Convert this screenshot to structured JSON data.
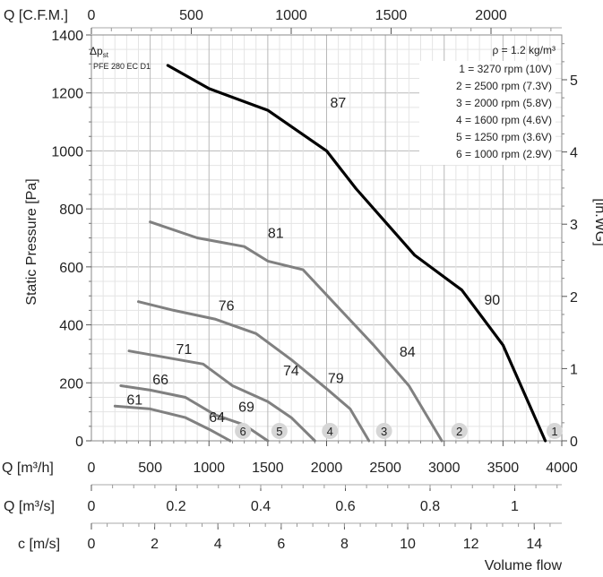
{
  "chart_data": {
    "type": "line",
    "model": "PFE 280 EC D1",
    "dp_label": "Δp",
    "dp_sub": "st",
    "rho_text": "ρ = 1.2 kg/m³",
    "ylabel": "Static Pressure [Pa]",
    "ylabel_right": "[in.WG]",
    "xlabel": "Volume flow",
    "cfm_label": "Q [C.F.M.]",
    "m3h_label": "Q [m³/h]",
    "m3s_label": "Q [m³/s]",
    "ms_label": "c [m/s]",
    "xlim": [
      0,
      4000
    ],
    "ylim": [
      0,
      1400
    ],
    "y_ticks": [
      0,
      200,
      400,
      600,
      800,
      1000,
      1200,
      1400
    ],
    "x_ticks": [
      500,
      1000,
      1500,
      2000,
      2500,
      3000,
      3500,
      4000
    ],
    "x_tick_zero": "0",
    "cfm_ticks": [
      "0",
      "500",
      "1000",
      "1500",
      "2000"
    ],
    "cfm_values": [
      0,
      500,
      1000,
      1500,
      2000
    ],
    "inwg_ticks": [
      "0",
      "1",
      "2",
      "3",
      "4",
      "5"
    ],
    "inwg_values": [
      0,
      1,
      2,
      3,
      4,
      5
    ],
    "m3s_ticks": [
      "0",
      "0.2",
      "0.4",
      "0.6",
      "0.8",
      "1"
    ],
    "m3s_values": [
      0,
      0.2,
      0.4,
      0.6,
      0.8,
      1
    ],
    "ms_ticks": [
      "0",
      "2",
      "4",
      "6",
      "8",
      "10",
      "12",
      "14"
    ],
    "ms_values": [
      0,
      2,
      4,
      6,
      8,
      10,
      12,
      14
    ],
    "legend": [
      "1 = 3270 rpm (10V)",
      "2 = 2500 rpm (7.3V)",
      "3 = 2000 rpm (5.8V)",
      "4 = 1600 rpm (4.6V)",
      "5 = 1250 rpm (3.6V)",
      "6 = 1000 rpm (2.9V)"
    ],
    "series": [
      {
        "label": "1",
        "color": "#000000",
        "x": [
          650,
          1000,
          1500,
          2000,
          2250,
          2750,
          3150,
          3500,
          3860
        ],
        "y": [
          1295,
          1215,
          1140,
          1000,
          870,
          640,
          520,
          330,
          0
        ]
      },
      {
        "label": "2",
        "color": "#808080",
        "x": [
          500,
          900,
          1300,
          1500,
          1800,
          2100,
          2400,
          2700,
          2980
        ],
        "y": [
          755,
          700,
          670,
          620,
          590,
          460,
          330,
          190,
          0
        ]
      },
      {
        "label": "3",
        "color": "#808080",
        "x": [
          400,
          700,
          1050,
          1400,
          1700,
          2000,
          2200,
          2360
        ],
        "y": [
          480,
          450,
          420,
          370,
          280,
          180,
          110,
          0
        ]
      },
      {
        "label": "4",
        "color": "#808080",
        "x": [
          320,
          600,
          950,
          1200,
          1500,
          1700,
          1900
        ],
        "y": [
          310,
          290,
          265,
          190,
          135,
          80,
          0
        ]
      },
      {
        "label": "5",
        "color": "#808080",
        "x": [
          250,
          500,
          800,
          1050,
          1300,
          1500
        ],
        "y": [
          190,
          175,
          150,
          90,
          55,
          0
        ]
      },
      {
        "label": "6",
        "color": "#808080",
        "x": [
          200,
          500,
          800,
          1000,
          1180
        ],
        "y": [
          120,
          110,
          80,
          40,
          0
        ]
      }
    ],
    "efficiency_labels": [
      {
        "text": "87",
        "x": 2030,
        "y": 1150
      },
      {
        "text": "90",
        "x": 3340,
        "y": 470
      },
      {
        "text": "81",
        "x": 1500,
        "y": 700
      },
      {
        "text": "84",
        "x": 2620,
        "y": 290
      },
      {
        "text": "76",
        "x": 1080,
        "y": 450
      },
      {
        "text": "79",
        "x": 2010,
        "y": 200
      },
      {
        "text": "71",
        "x": 720,
        "y": 300
      },
      {
        "text": "74",
        "x": 1630,
        "y": 225
      },
      {
        "text": "66",
        "x": 520,
        "y": 195
      },
      {
        "text": "69",
        "x": 1250,
        "y": 100
      },
      {
        "text": "61",
        "x": 300,
        "y": 125
      },
      {
        "text": "64",
        "x": 1000,
        "y": 65
      }
    ],
    "markers": [
      {
        "text": "1",
        "x": 3870
      },
      {
        "text": "2",
        "x": 3060
      },
      {
        "text": "3",
        "x": 2420
      },
      {
        "text": "4",
        "x": 1960
      },
      {
        "text": "5",
        "x": 1530
      },
      {
        "text": "6",
        "x": 1220
      }
    ]
  }
}
